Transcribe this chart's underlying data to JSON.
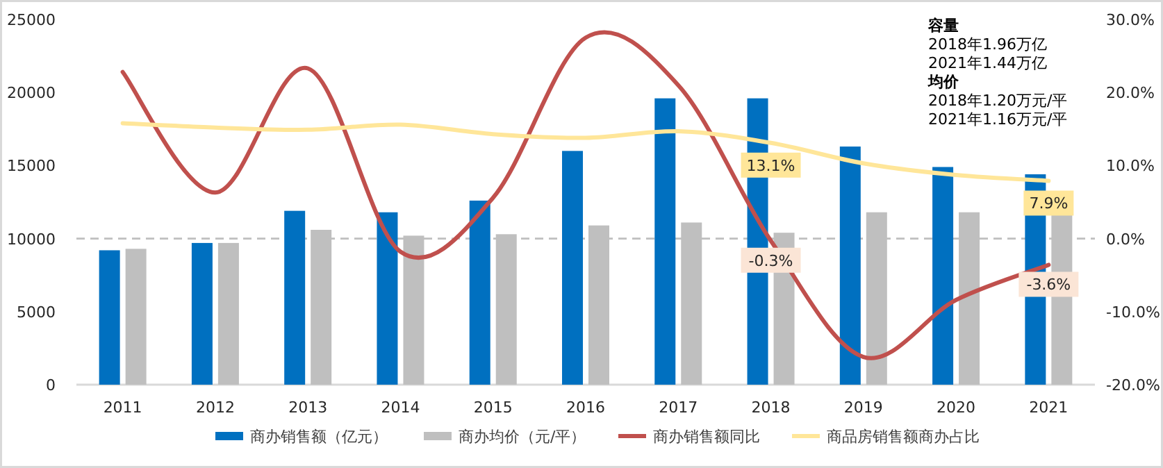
{
  "chart_data": {
    "type": "bar",
    "categories": [
      "2011",
      "2012",
      "2013",
      "2014",
      "2015",
      "2016",
      "2017",
      "2018",
      "2019",
      "2020",
      "2021"
    ],
    "series": [
      {
        "name": "商办销售额（亿元）",
        "color": "#0070c0",
        "values": [
          9200,
          9700,
          11900,
          11800,
          12600,
          16000,
          19600,
          19600,
          16300,
          14900,
          14400
        ]
      },
      {
        "name": "商办均价（元/平）",
        "color": "#bfbfbf",
        "values": [
          9300,
          9700,
          10600,
          10200,
          10300,
          10900,
          11100,
          10400,
          11800,
          11800,
          11600
        ]
      },
      {
        "name": "商办销售额同比",
        "type": "line",
        "axis": "y2",
        "color": "#c0504d",
        "values": [
          22.8,
          6.3,
          23.3,
          -1.8,
          5.6,
          27.5,
          21.0,
          -0.3,
          -16.2,
          -8.4,
          -3.6
        ],
        "value_labels": [
          null,
          null,
          null,
          null,
          null,
          null,
          null,
          "-0.3%",
          null,
          null,
          "-3.6%"
        ]
      },
      {
        "name": "商品房销售额商办占比",
        "type": "line",
        "axis": "y2",
        "color": "#ffe699",
        "values": [
          15.8,
          15.2,
          14.9,
          15.6,
          14.3,
          13.8,
          14.7,
          13.1,
          10.3,
          8.7,
          7.9
        ],
        "value_labels": [
          null,
          null,
          null,
          null,
          null,
          null,
          null,
          "13.1%",
          null,
          null,
          "7.9%"
        ]
      }
    ],
    "ylim": [
      0,
      25000
    ],
    "yticks": [
      0,
      5000,
      10000,
      15000,
      20000,
      25000
    ],
    "y2lim": [
      -20,
      30
    ],
    "y2ticks": [
      {
        "value": -20,
        "label": "-20.0%"
      },
      {
        "value": -10,
        "label": "-10.0%"
      },
      {
        "value": 0,
        "label": "0.0%"
      },
      {
        "value": 10,
        "label": "10.0%"
      },
      {
        "value": 20,
        "label": "20.0%"
      },
      {
        "value": 30,
        "label": "30.0%"
      }
    ],
    "ref_lines": [
      {
        "axis": "y2",
        "value": 0,
        "color": "#bfbfbf",
        "line_style": "dashed"
      }
    ],
    "annotations": [
      "**容量**",
      "2018年1.96万亿",
      "2021年1.44万亿",
      "**均价**",
      "2018年1.20万元/平",
      "2021年1.16万元/平"
    ],
    "legend": "bottom",
    "grid": false
  }
}
